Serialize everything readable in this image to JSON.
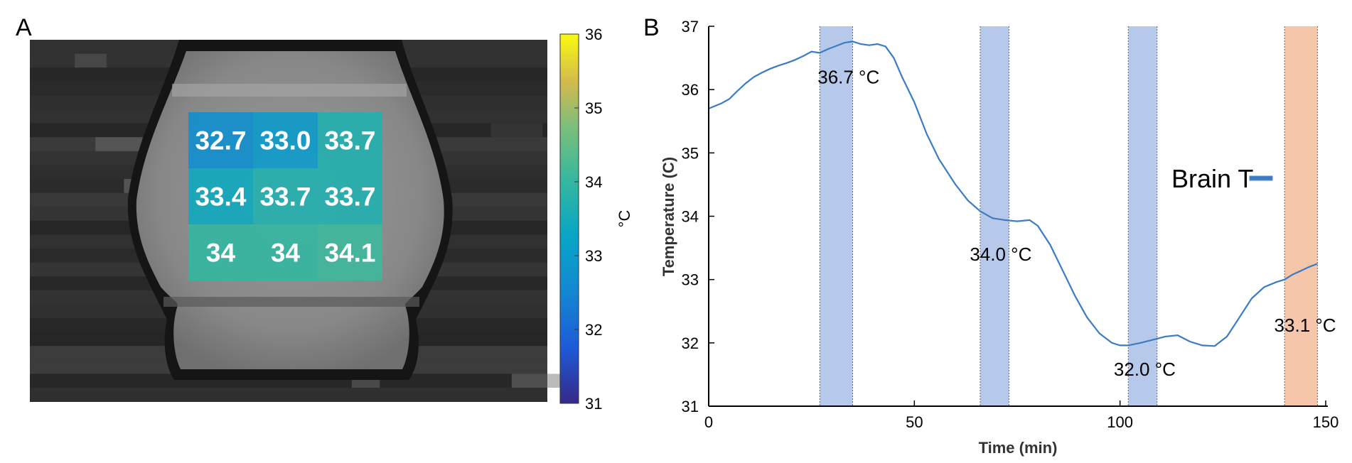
{
  "figure": {
    "panel_a_label": "A",
    "panel_b_label": "B"
  },
  "chart_data": [
    {
      "type": "heatmap",
      "panel": "A",
      "rows": 3,
      "cols": 3,
      "values": [
        [
          32.7,
          33.0,
          33.7
        ],
        [
          33.4,
          33.7,
          33.7
        ],
        [
          34.0,
          34.0,
          34.1
        ]
      ],
      "cell_labels": [
        [
          "32.7",
          "33.0",
          "33.7"
        ],
        [
          "33.4",
          "33.7",
          "33.7"
        ],
        [
          "34",
          "34",
          "34.1"
        ]
      ],
      "colorbar": {
        "min": 31,
        "max": 36,
        "ticks": [
          "31",
          "32",
          "33",
          "34",
          "35",
          "36"
        ],
        "label": "°C",
        "colormap": "parula"
      },
      "background": "grayscale MRI image"
    },
    {
      "type": "line",
      "panel": "B",
      "title": "",
      "xlabel": "Time (min)",
      "ylabel": "Temperature (C)",
      "xlim": [
        0,
        150
      ],
      "ylim": [
        31,
        37
      ],
      "xticks": [
        "0",
        "50",
        "100",
        "150"
      ],
      "yticks": [
        "31",
        "32",
        "33",
        "34",
        "35",
        "36",
        "37"
      ],
      "series": [
        {
          "name": "Brain T",
          "color": "#3a7cc4",
          "x": [
            0,
            3,
            5,
            7,
            9,
            11,
            13,
            15,
            17,
            19,
            21,
            23,
            25,
            27,
            29,
            31,
            33,
            35,
            37,
            39,
            41,
            43,
            45,
            47,
            50,
            53,
            56,
            60,
            63,
            66,
            69,
            72,
            75,
            78,
            80,
            83,
            86,
            89,
            92,
            95,
            98,
            100,
            102,
            105,
            108,
            111,
            114,
            117,
            120,
            123,
            126,
            129,
            132,
            135,
            138,
            140,
            142,
            144,
            146,
            148
          ],
          "y": [
            35.7,
            35.78,
            35.85,
            35.98,
            36.1,
            36.2,
            36.27,
            36.33,
            36.38,
            36.42,
            36.47,
            36.53,
            36.6,
            36.58,
            36.64,
            36.69,
            36.74,
            36.76,
            36.72,
            36.7,
            36.72,
            36.68,
            36.5,
            36.2,
            35.8,
            35.3,
            34.9,
            34.5,
            34.25,
            34.08,
            33.97,
            33.94,
            33.92,
            33.94,
            33.85,
            33.55,
            33.15,
            32.75,
            32.4,
            32.15,
            32.0,
            31.96,
            31.96,
            32.0,
            32.05,
            32.1,
            32.12,
            32.02,
            31.96,
            31.95,
            32.1,
            32.4,
            32.7,
            32.88,
            32.96,
            33.0,
            33.08,
            33.14,
            33.2,
            33.25
          ]
        }
      ],
      "shaded_regions": [
        {
          "x_start": 27,
          "x_end": 35,
          "color": "#b7c9ea"
        },
        {
          "x_start": 66,
          "x_end": 73,
          "color": "#b7c9ea"
        },
        {
          "x_start": 102,
          "x_end": 109,
          "color": "#b7c9ea"
        },
        {
          "x_start": 140,
          "x_end": 148,
          "color": "#f5c6aa"
        }
      ],
      "annotations": [
        {
          "text": "36.7 °C",
          "x": 34,
          "y": 36.1
        },
        {
          "text": "34.0 °C",
          "x": 71,
          "y": 33.3
        },
        {
          "text": "32.0 °C",
          "x": 106,
          "y": 31.48
        },
        {
          "text": "33.1 °C",
          "x": 145,
          "y": 32.18
        }
      ],
      "legend": {
        "label": "Brain T",
        "location": "right-middle"
      }
    }
  ]
}
